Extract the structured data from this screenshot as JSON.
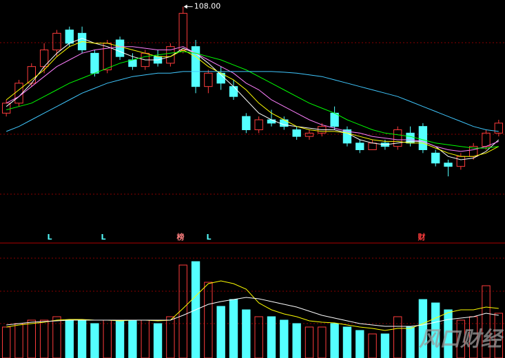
{
  "chart_data": {
    "type": "candlestick",
    "annotation": {
      "value": 108,
      "label": "108.00"
    },
    "ylim": [
      50,
      110
    ],
    "up_color": "#ff3c3c",
    "down_color": "#54ffff",
    "open": [
      76,
      79,
      85,
      90,
      95,
      101,
      100,
      94,
      89,
      98,
      92,
      90,
      93,
      91,
      95,
      96,
      84,
      88,
      84,
      75,
      71,
      74,
      74,
      71,
      69,
      70,
      76,
      71,
      67,
      65,
      67,
      66,
      70,
      72,
      64,
      61,
      60,
      63,
      66,
      70
    ],
    "high": [
      80,
      86,
      91,
      97,
      101,
      102,
      102,
      95,
      98,
      99,
      94,
      95,
      95,
      97,
      108,
      98,
      89,
      90,
      86,
      76,
      75,
      77,
      75,
      72,
      71,
      73,
      78,
      72,
      68,
      68,
      68,
      72,
      72,
      73,
      65,
      62,
      64,
      67,
      71,
      74
    ],
    "low": [
      75,
      78,
      84,
      88,
      93,
      96,
      94,
      87,
      88,
      92,
      89,
      89,
      90,
      90,
      94,
      82,
      82,
      83,
      80,
      70,
      70,
      72,
      71,
      68,
      68,
      69,
      71,
      66,
      64,
      65,
      65,
      65,
      66,
      64,
      60,
      57,
      59,
      62,
      65,
      69
    ],
    "close": [
      79,
      85,
      90,
      95,
      100,
      97,
      95,
      88,
      97,
      93,
      90,
      94,
      91,
      96,
      106,
      84,
      88,
      85,
      81,
      71,
      74,
      73,
      72,
      69,
      70,
      72,
      72,
      67,
      65,
      67,
      66,
      71,
      67,
      65,
      61,
      60,
      63,
      66,
      70,
      73
    ],
    "ma": [
      {
        "color": "#ffffff",
        "values": [
          78,
          81,
          85,
          90,
          94,
          97,
          98.5,
          97,
          96,
          94.5,
          93,
          92,
          92,
          93,
          95.5,
          94,
          91,
          87.5,
          84,
          80,
          76,
          74,
          72.5,
          72,
          71.5,
          71,
          71,
          70,
          68,
          67,
          66.5,
          67,
          67.5,
          67.5,
          66,
          63,
          62,
          62.5,
          64.5,
          68
        ]
      },
      {
        "color": "#ffff00",
        "values": [
          80,
          83,
          86,
          89,
          93,
          96,
          97.5,
          97,
          97,
          96,
          95,
          94,
          93,
          93,
          95,
          93,
          90,
          88,
          86,
          83,
          79,
          76,
          74,
          72,
          71,
          70.5,
          70.5,
          70,
          69,
          68,
          67.5,
          67.5,
          67,
          67,
          65.5,
          64,
          63,
          63,
          64,
          66
        ]
      },
      {
        "color": "#ff80ff",
        "values": [
          79,
          81,
          84,
          87,
          90,
          92,
          94,
          95,
          95.5,
          96,
          96,
          95.5,
          95,
          95,
          96,
          94,
          92,
          90,
          88,
          85,
          83,
          80,
          78,
          76,
          74,
          72.5,
          71.5,
          70.5,
          70,
          69,
          68.5,
          68,
          68,
          67.5,
          66,
          65,
          64.5,
          65,
          66,
          67.5
        ]
      },
      {
        "color": "#00ff00",
        "values": [
          77,
          78,
          79,
          81,
          83,
          85,
          86.5,
          88,
          89.5,
          91,
          92,
          93,
          93.5,
          94,
          94.5,
          94,
          93,
          92,
          90.5,
          89,
          87,
          85,
          83,
          81,
          79,
          77.5,
          76,
          74,
          72.5,
          71,
          70,
          69.5,
          69,
          68,
          67,
          66.5,
          66,
          65.5,
          65.5,
          66
        ]
      },
      {
        "color": "#40c8ff",
        "values": [
          70.5,
          72,
          74,
          76,
          78,
          80,
          82,
          83.5,
          85,
          86,
          87,
          87.5,
          88,
          88,
          88.5,
          88.5,
          88.5,
          88.5,
          88.5,
          88.5,
          88.5,
          88.5,
          88.3,
          88,
          87.5,
          87,
          86,
          85,
          84,
          83,
          82,
          81,
          79.5,
          78,
          76.5,
          75,
          73.5,
          72,
          71,
          70.5
        ]
      }
    ],
    "volume": {
      "ylim": [
        0,
        150
      ],
      "values": [
        45,
        50,
        55,
        55,
        60,
        55,
        55,
        50,
        55,
        55,
        55,
        55,
        50,
        60,
        135,
        140,
        110,
        75,
        85,
        70,
        60,
        60,
        55,
        50,
        45,
        45,
        50,
        45,
        40,
        35,
        35,
        60,
        45,
        85,
        80,
        70,
        55,
        60,
        105,
        65
      ],
      "ma": [
        {
          "color": "#ffff00",
          "values": [
            45,
            48,
            50,
            52,
            55,
            56,
            56,
            55,
            55,
            54,
            55,
            55,
            54,
            55,
            72,
            90,
            108,
            112,
            108,
            100,
            80,
            70,
            64,
            60,
            54,
            52,
            51,
            48,
            45,
            43,
            40,
            43,
            43,
            50,
            58,
            66,
            70,
            70,
            74,
            72
          ]
        },
        {
          "color": "#ffffff",
          "values": [
            48,
            50,
            52,
            53,
            54,
            55,
            55,
            55,
            55,
            55,
            55,
            55,
            55,
            55,
            62,
            70,
            78,
            82,
            85,
            88,
            86,
            82,
            78,
            74,
            68,
            62,
            58,
            54,
            50,
            48,
            46,
            46,
            46,
            48,
            52,
            56,
            58,
            60,
            65,
            62
          ]
        }
      ]
    },
    "markers": [
      "L",
      "L",
      "榜",
      "L",
      "财"
    ],
    "watermark": "风口财经"
  }
}
